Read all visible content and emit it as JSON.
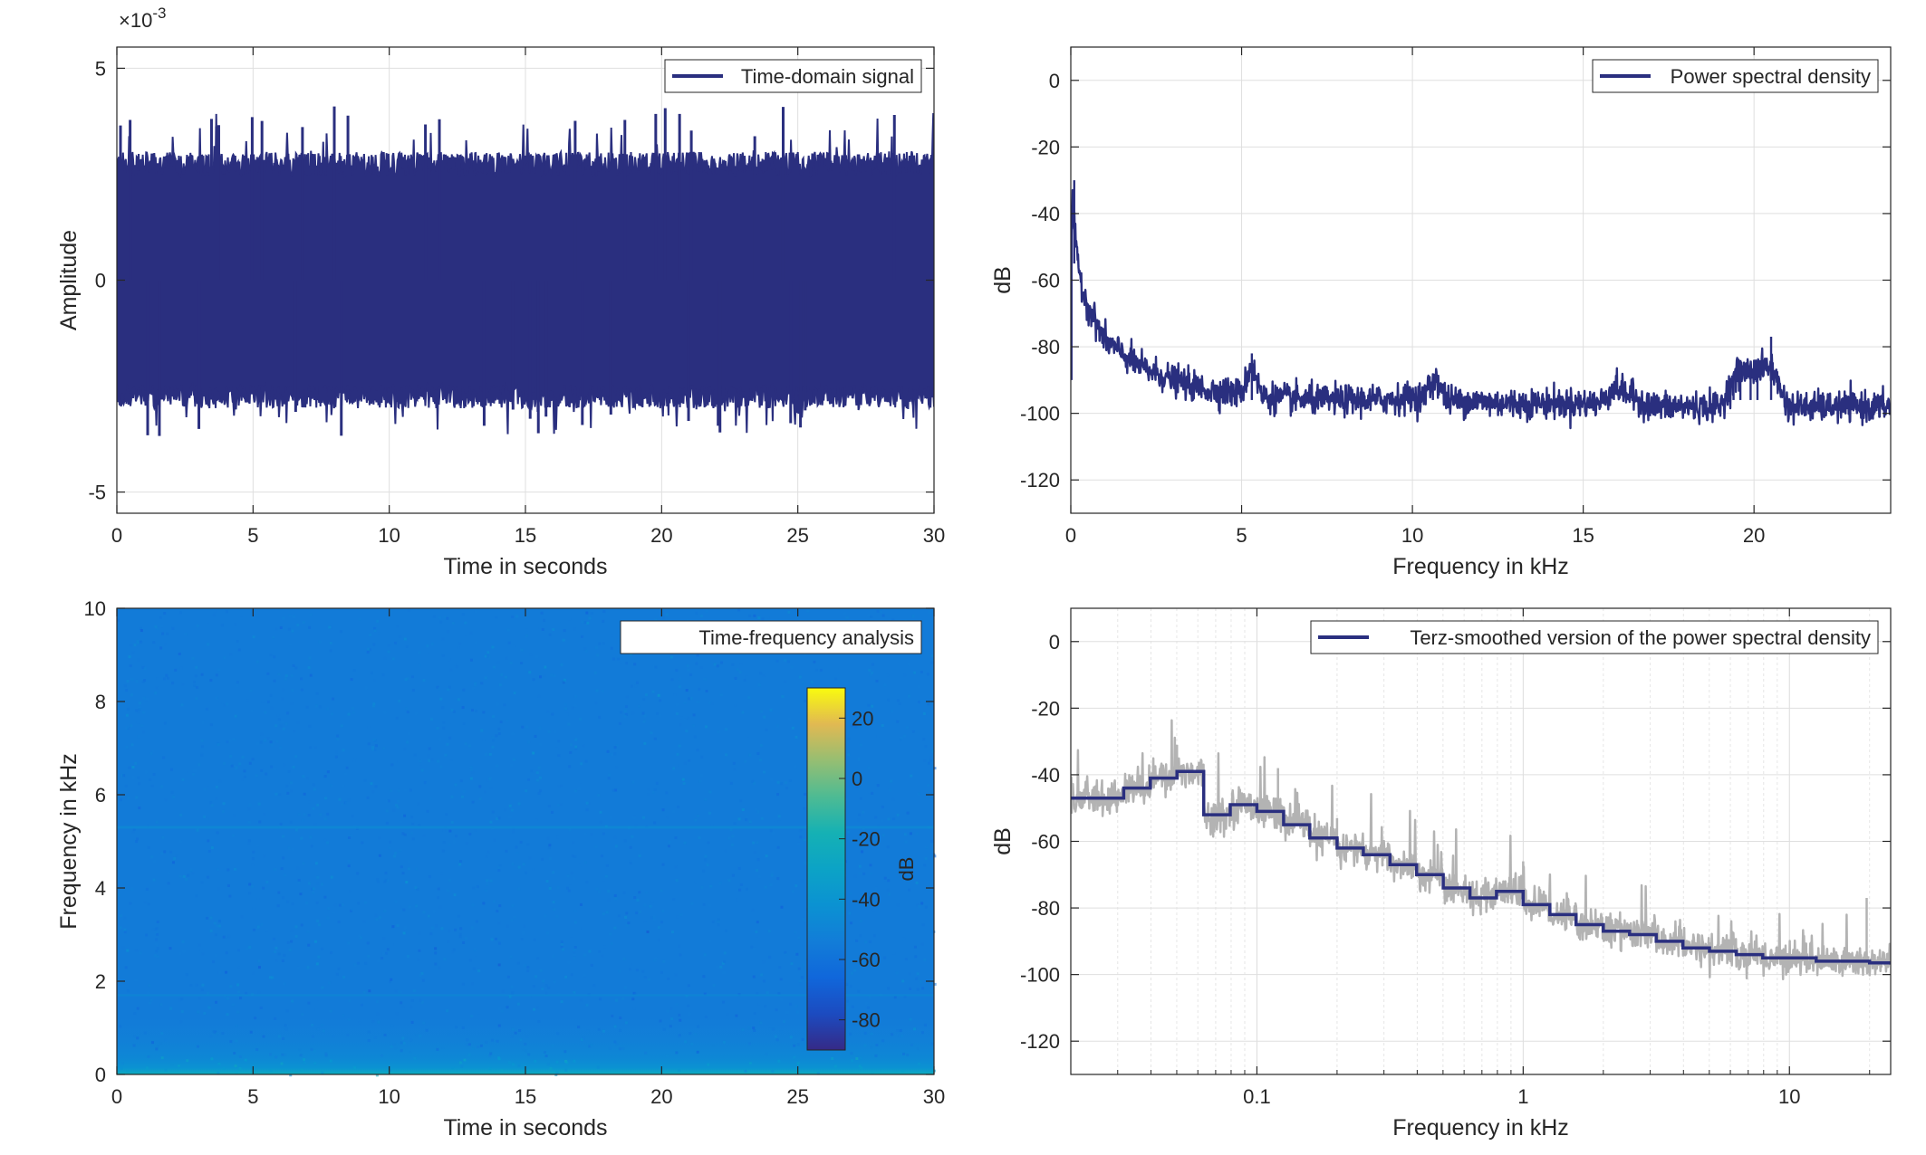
{
  "figure": {
    "colors": {
      "series": "#2a2f7f",
      "grey": "#b3b3b3",
      "axis": "#262626",
      "grid": "#dfdfdf"
    }
  },
  "chart_data": [
    {
      "id": "time",
      "type": "line",
      "xlabel": "Time in seconds",
      "ylabel": "Amplitude",
      "xlim": [
        0,
        30
      ],
      "ylim": [
        -0.0055,
        0.0055
      ],
      "x_ticks": [
        0,
        5,
        10,
        15,
        20,
        25,
        30
      ],
      "x_tick_labels": [
        "0",
        "5",
        "10",
        "15",
        "20",
        "25",
        "30"
      ],
      "y_ticks": [
        -0.005,
        0,
        0.005
      ],
      "y_tick_labels": [
        "-5",
        "0",
        "5"
      ],
      "y_exponent": {
        "base": "×10",
        "power": "-3"
      },
      "grid": true,
      "legend_location": "top-right",
      "series": [
        {
          "name": "Time-domain signal",
          "envelope_upper_approx": 0.0028,
          "envelope_lower_approx": -0.0028,
          "peak_max": 0.0041,
          "peak_min": -0.0037
        }
      ]
    },
    {
      "id": "psd",
      "type": "line",
      "xlabel": "Frequency in kHz",
      "ylabel": "dB",
      "xlim": [
        0,
        24
      ],
      "ylim": [
        -130,
        10
      ],
      "x_ticks": [
        0,
        5,
        10,
        15,
        20
      ],
      "x_tick_labels": [
        "0",
        "5",
        "10",
        "15",
        "20"
      ],
      "y_ticks": [
        -120,
        -100,
        -80,
        -60,
        -40,
        -20,
        0
      ],
      "y_tick_labels": [
        "-120",
        "-100",
        "-80",
        "-60",
        "-40",
        "-20",
        "0"
      ],
      "grid": true,
      "legend_location": "top-right",
      "series": [
        {
          "name": "Power spectral density",
          "x": [
            0,
            0.05,
            0.1,
            0.2,
            0.4,
            0.7,
            1,
            1.5,
            2,
            3,
            4,
            5,
            5.3,
            5.6,
            7,
            9,
            10.3,
            10.7,
            11,
            13,
            15.5,
            15.9,
            17,
            19,
            19.5,
            20.5,
            21,
            22,
            24
          ],
          "y": [
            -60,
            -35,
            -45,
            -55,
            -65,
            -72,
            -78,
            -82,
            -86,
            -90,
            -93,
            -94,
            -85,
            -95,
            -96,
            -96,
            -95,
            -89,
            -96,
            -97,
            -97,
            -92,
            -98,
            -98,
            -88,
            -86,
            -98,
            -98,
            -98
          ]
        }
      ]
    },
    {
      "id": "spectrogram",
      "type": "heatmap",
      "title": "Time-frequency analysis",
      "xlabel": "Time in seconds",
      "ylabel": "Frequency in kHz",
      "xlim": [
        0,
        30
      ],
      "ylim": [
        0,
        10
      ],
      "x_ticks": [
        0,
        5,
        10,
        15,
        20,
        25,
        30
      ],
      "x_tick_labels": [
        "0",
        "5",
        "10",
        "15",
        "20",
        "25",
        "30"
      ],
      "y_ticks": [
        0,
        2,
        4,
        6,
        8,
        10
      ],
      "y_tick_labels": [
        "0",
        "2",
        "4",
        "6",
        "8",
        "10"
      ],
      "colorbar": {
        "label": "dB",
        "clim": [
          -90,
          30
        ],
        "ticks": [
          -80,
          -60,
          -40,
          -20,
          0,
          20
        ],
        "tick_labels": [
          "-80",
          "-60",
          "-40",
          "-20",
          "0",
          "20"
        ]
      },
      "background_level_db": -55,
      "low_frequency_level_db": -20,
      "tonal_line_khz": 5.3
    },
    {
      "id": "terz",
      "type": "line",
      "xlabel": "Frequency in kHz",
      "ylabel": "dB",
      "x_scale": "log",
      "xlim": [
        0.02,
        24
      ],
      "ylim": [
        -130,
        10
      ],
      "x_ticks": [
        0.1,
        1,
        10
      ],
      "x_tick_labels": [
        "0.1",
        "1",
        "10"
      ],
      "y_ticks": [
        -120,
        -100,
        -80,
        -60,
        -40,
        -20,
        0
      ],
      "y_tick_labels": [
        "-120",
        "-100",
        "-80",
        "-60",
        "-40",
        "-20",
        "0"
      ],
      "grid": true,
      "legend_location": "top-right",
      "series": [
        {
          "name": "Terz-smoothed version of the power spectral density",
          "x": [
            0.02,
            0.0316,
            0.0398,
            0.0501,
            0.0631,
            0.0794,
            0.1,
            0.126,
            0.158,
            0.2,
            0.251,
            0.316,
            0.398,
            0.501,
            0.631,
            0.794,
            1,
            1.26,
            1.58,
            2,
            2.51,
            3.16,
            3.98,
            5.01,
            6.31,
            7.94,
            10,
            12.6,
            15.8,
            20,
            24
          ],
          "y": [
            -47,
            -44,
            -41,
            -39,
            -52,
            -49,
            -51,
            -55,
            -59,
            -62,
            -64,
            -67,
            -70,
            -74,
            -77,
            -75,
            -79,
            -82,
            -85,
            -87,
            -88,
            -90,
            -92,
            -93,
            -94,
            -95,
            -95,
            -96,
            -96,
            -96.5,
            -97
          ]
        }
      ]
    }
  ]
}
